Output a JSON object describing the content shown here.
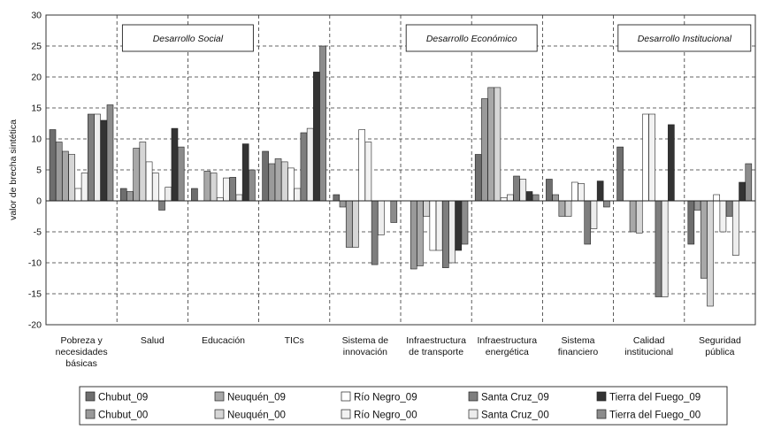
{
  "chart_data": {
    "type": "bar",
    "title": "",
    "ylabel": "valor de brecha sintética",
    "ylim": [
      -20,
      30
    ],
    "yticks": [
      "30",
      "25",
      "20",
      "15",
      "10",
      "5",
      "0",
      "-5",
      "-10",
      "-15",
      "-20"
    ],
    "grid": "dashed-horizontal",
    "categories": [
      "Pobreza y necesidades básicas",
      "Salud",
      "Educación",
      "TICs",
      "Sistema de innovación",
      "Infraestructura de transporte",
      "Infraestructura energética",
      "Sistema financiero",
      "Calidad institucional",
      "Seguridad pública"
    ],
    "category_lines": [
      [
        "Pobreza y",
        "necesidades",
        "básicas"
      ],
      [
        "Salud"
      ],
      [
        "Educación"
      ],
      [
        "TICs"
      ],
      [
        "Sistema de",
        "innovación"
      ],
      [
        "Infraestructura",
        "de transporte"
      ],
      [
        "Infraestructura",
        "energética"
      ],
      [
        "Sistema",
        "financiero"
      ],
      [
        "Calidad",
        "institucional"
      ],
      [
        "Seguridad",
        "pública"
      ]
    ],
    "groups": [
      {
        "label": "Desarrollo Social",
        "span": [
          0,
          3
        ]
      },
      {
        "label": "Desarrollo Económico",
        "span": [
          4,
          7
        ]
      },
      {
        "label": "Desarrollo Institucional",
        "span": [
          8,
          9
        ]
      }
    ],
    "legend_position": "bottom",
    "series": [
      {
        "name": "Chubut_09",
        "color": "#6e6e6e",
        "values": [
          11.5,
          2.0,
          2.0,
          8.0,
          1.0,
          null,
          7.5,
          3.5,
          8.7,
          -7.0
        ]
      },
      {
        "name": "Chubut_00",
        "color": "#9a9a9a",
        "values": [
          9.5,
          1.5,
          0.0,
          6.0,
          -1.0,
          -11.0,
          16.5,
          1.0,
          null,
          -1.5
        ]
      },
      {
        "name": "Neuquén_09",
        "color": "#a8a8a8",
        "values": [
          8.0,
          8.5,
          4.8,
          6.8,
          -7.5,
          -10.5,
          18.3,
          -2.5,
          -5.0,
          -12.5
        ]
      },
      {
        "name": "Neuquén_00",
        "color": "#d6d6d6",
        "values": [
          7.5,
          9.5,
          4.5,
          6.3,
          -7.5,
          -2.5,
          18.3,
          -2.5,
          -5.2,
          -17.0
        ]
      },
      {
        "name": "Río Negro_09",
        "color": "#ffffff",
        "values": [
          2.0,
          6.3,
          0.5,
          5.3,
          11.5,
          -8.0,
          0.5,
          3.0,
          14.0,
          1.0
        ]
      },
      {
        "name": "Río Negro_00",
        "color": "#f2f2f2",
        "values": [
          4.5,
          4.5,
          3.7,
          2.0,
          9.5,
          -8.0,
          1.0,
          2.8,
          14.0,
          -5.0
        ]
      },
      {
        "name": "Santa Cruz_09",
        "color": "#7e7e7e",
        "values": [
          14.0,
          -1.5,
          3.8,
          11.0,
          -10.3,
          -10.8,
          4.0,
          -7.0,
          -15.5,
          -2.5
        ]
      },
      {
        "name": "Santa Cruz_00",
        "color": "#ededed",
        "values": [
          14.0,
          2.2,
          1.0,
          11.7,
          -5.5,
          -10.0,
          3.5,
          -4.5,
          -15.5,
          -8.8
        ]
      },
      {
        "name": "Tierra del Fuego_09",
        "color": "#333333",
        "values": [
          13.0,
          11.7,
          9.2,
          20.8,
          null,
          -8.0,
          1.5,
          3.2,
          12.3,
          3.0
        ]
      },
      {
        "name": "Tierra del Fuego_00",
        "color": "#8c8c8c",
        "values": [
          15.5,
          8.7,
          5.0,
          25.0,
          -3.5,
          -7.0,
          1.0,
          -1.0,
          null,
          6.0
        ]
      }
    ]
  }
}
